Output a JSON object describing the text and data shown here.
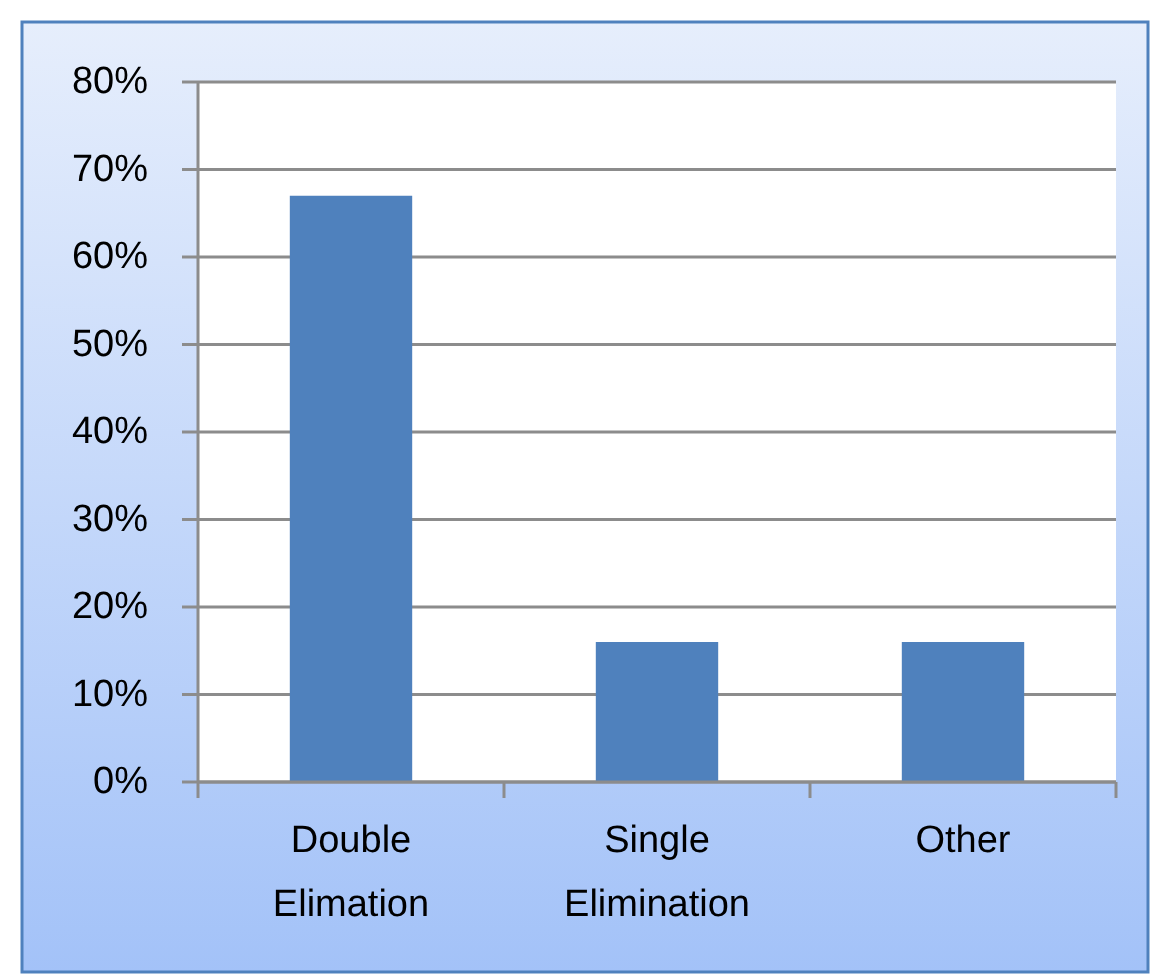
{
  "chart_data": {
    "type": "bar",
    "categories": [
      "Double Elimation",
      "Single Elimination",
      "Other"
    ],
    "values": [
      67,
      16,
      16
    ],
    "color": "#4f81bd",
    "ylim": [
      0,
      80
    ],
    "yticks": [
      {
        "value": 0,
        "label": "0%"
      },
      {
        "value": 10,
        "label": "10%"
      },
      {
        "value": 20,
        "label": "20%"
      },
      {
        "value": 30,
        "label": "30%"
      },
      {
        "value": 40,
        "label": "40%"
      },
      {
        "value": 50,
        "label": "50%"
      },
      {
        "value": 60,
        "label": "60%"
      },
      {
        "value": 70,
        "label": "70%"
      },
      {
        "value": 80,
        "label": "80%"
      }
    ],
    "grid": "y"
  }
}
